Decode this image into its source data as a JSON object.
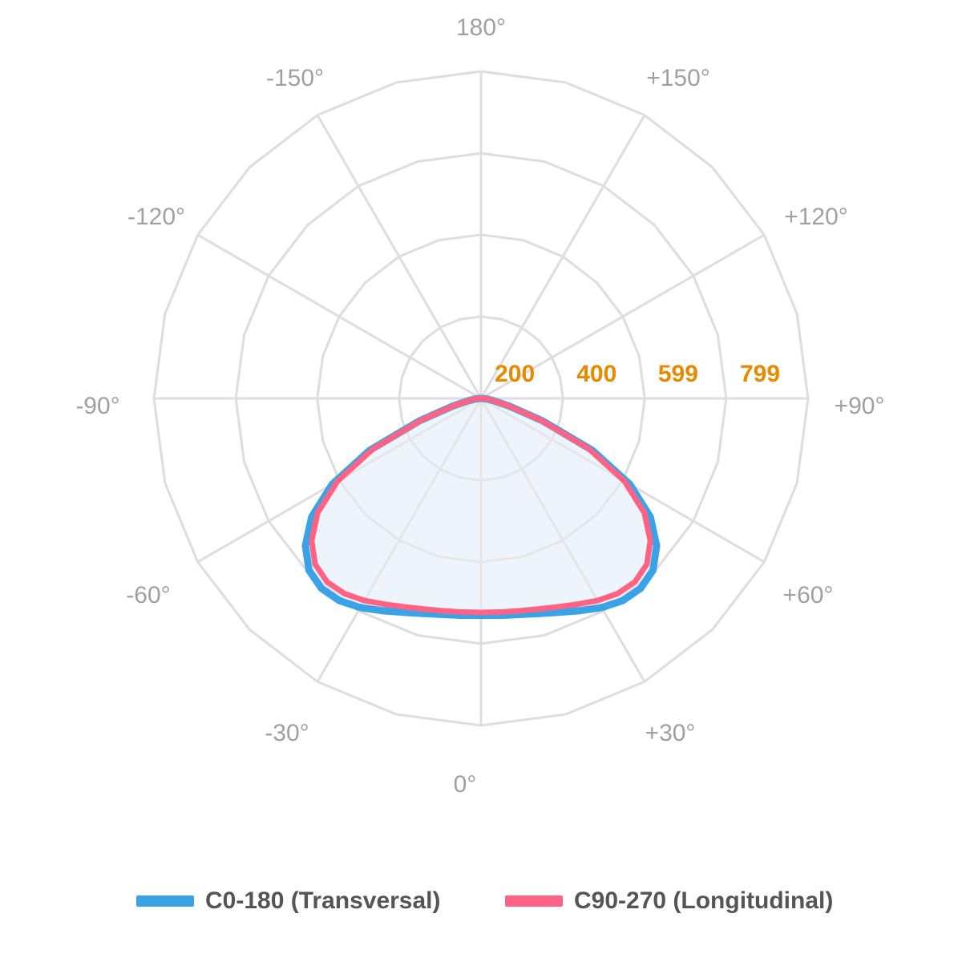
{
  "chart_data": {
    "type": "polar-line",
    "angle_ticks": [
      {
        "angle": 0,
        "label": "0°"
      },
      {
        "angle": 30,
        "label": "+30°"
      },
      {
        "angle": 60,
        "label": "+60°"
      },
      {
        "angle": 90,
        "label": "+90°"
      },
      {
        "angle": 120,
        "label": "+120°"
      },
      {
        "angle": 150,
        "label": "+150°"
      },
      {
        "angle": 180,
        "label": "180°"
      },
      {
        "angle": -150,
        "label": "-150°"
      },
      {
        "angle": -120,
        "label": "-120°"
      },
      {
        "angle": -90,
        "label": "-90°"
      },
      {
        "angle": -60,
        "label": "-60°"
      },
      {
        "angle": -30,
        "label": "-30°"
      }
    ],
    "radial_ticks": [
      {
        "value": 200,
        "label": "200"
      },
      {
        "value": 400,
        "label": "400"
      },
      {
        "value": 599,
        "label": "599"
      },
      {
        "value": 799,
        "label": "799"
      }
    ],
    "radial_max": 799,
    "angle_step_grid": 15,
    "series": [
      {
        "name": "C0-180 (Transversal)",
        "color": "#3aa3e8",
        "filled": true,
        "fill_color": "#eef4fb",
        "points": [
          [
            -90,
            0
          ],
          [
            -85,
            14
          ],
          [
            -80,
            30
          ],
          [
            -75,
            70
          ],
          [
            -70,
            160
          ],
          [
            -65,
            300
          ],
          [
            -60,
            420
          ],
          [
            -55,
            505
          ],
          [
            -50,
            560
          ],
          [
            -45,
            594
          ],
          [
            -40,
            606
          ],
          [
            -35,
            603
          ],
          [
            -30,
            590
          ],
          [
            -25,
            572
          ],
          [
            -20,
            556
          ],
          [
            -15,
            544
          ],
          [
            -10,
            536
          ],
          [
            -5,
            532
          ],
          [
            0,
            530
          ],
          [
            5,
            532
          ],
          [
            10,
            536
          ],
          [
            15,
            544
          ],
          [
            20,
            556
          ],
          [
            25,
            572
          ],
          [
            30,
            590
          ],
          [
            35,
            603
          ],
          [
            40,
            606
          ],
          [
            45,
            594
          ],
          [
            50,
            560
          ],
          [
            55,
            505
          ],
          [
            60,
            420
          ],
          [
            65,
            300
          ],
          [
            70,
            160
          ],
          [
            75,
            70
          ],
          [
            80,
            30
          ],
          [
            85,
            14
          ],
          [
            90,
            0
          ]
        ]
      },
      {
        "name": "C90-270 (Longitudinal)",
        "color": "#ff6384",
        "filled": false,
        "points": [
          [
            -90,
            0
          ],
          [
            -85,
            14
          ],
          [
            -80,
            30
          ],
          [
            -75,
            68
          ],
          [
            -70,
            155
          ],
          [
            -65,
            290
          ],
          [
            -60,
            405
          ],
          [
            -55,
            487
          ],
          [
            -50,
            540
          ],
          [
            -45,
            573
          ],
          [
            -40,
            585
          ],
          [
            -35,
            582
          ],
          [
            -30,
            570
          ],
          [
            -25,
            555
          ],
          [
            -20,
            542
          ],
          [
            -15,
            533
          ],
          [
            -10,
            527
          ],
          [
            -5,
            524
          ],
          [
            0,
            523
          ],
          [
            5,
            524
          ],
          [
            10,
            527
          ],
          [
            15,
            533
          ],
          [
            20,
            542
          ],
          [
            25,
            555
          ],
          [
            30,
            570
          ],
          [
            35,
            582
          ],
          [
            40,
            585
          ],
          [
            45,
            573
          ],
          [
            50,
            540
          ],
          [
            55,
            487
          ],
          [
            60,
            405
          ],
          [
            65,
            290
          ],
          [
            70,
            155
          ],
          [
            75,
            68
          ],
          [
            80,
            30
          ],
          [
            85,
            14
          ],
          [
            90,
            0
          ]
        ]
      }
    ],
    "legend_position": "bottom"
  }
}
